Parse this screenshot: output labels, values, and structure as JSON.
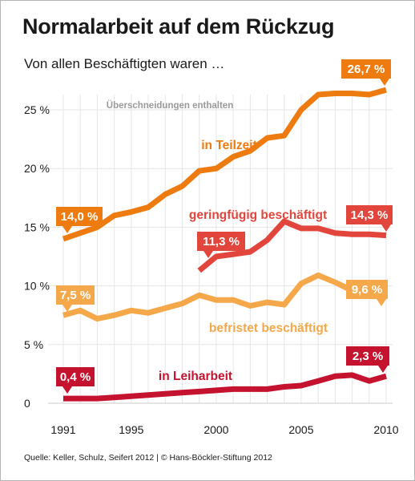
{
  "title": "Normalarbeit auf dem Rückzug",
  "subtitle": "Von allen Beschäftigten waren …",
  "note": "Überschneidungen enthalten",
  "source": "Quelle: Keller, Schulz, Seifert 2012 | © Hans-Böckler-Stiftung 2012",
  "chart_data": {
    "type": "line",
    "x_ticks": [
      "1991",
      "1995",
      "2000",
      "2005",
      "2010"
    ],
    "y_ticks": [
      "0",
      "5 %",
      "10 %",
      "15 %",
      "20 %",
      "25 %"
    ],
    "ylim": [
      0,
      28
    ],
    "xlim": [
      1991,
      2010
    ],
    "grid": true,
    "series": [
      {
        "name": "in Teilzeit",
        "color": "#ee7b10",
        "x": [
          1991,
          1992,
          1993,
          1994,
          1995,
          1996,
          1997,
          1998,
          1999,
          2000,
          2001,
          2002,
          2003,
          2004,
          2005,
          2006,
          2007,
          2008,
          2009,
          2010
        ],
        "values": [
          14.0,
          14.5,
          15.0,
          16.0,
          16.3,
          16.7,
          17.8,
          18.5,
          19.8,
          20.0,
          21.0,
          21.5,
          22.6,
          22.8,
          25.0,
          26.3,
          26.4,
          26.4,
          26.3,
          26.7
        ],
        "start_label": "14,0 %",
        "end_label": "26,7 %"
      },
      {
        "name": "geringfügig beschäftigt",
        "color": "#e2453b",
        "x": [
          1999,
          2000,
          2001,
          2002,
          2003,
          2004,
          2005,
          2006,
          2007,
          2008,
          2009,
          2010
        ],
        "values": [
          11.3,
          12.5,
          12.7,
          12.9,
          13.9,
          15.5,
          14.9,
          14.9,
          14.5,
          14.4,
          14.4,
          14.3
        ],
        "start_label": "11,3 %",
        "end_label": "14,3 %"
      },
      {
        "name": "befristet beschäftigt",
        "color": "#f5a84a",
        "x": [
          1991,
          1992,
          1993,
          1994,
          1995,
          1996,
          1997,
          1998,
          1999,
          2000,
          2001,
          2002,
          2003,
          2004,
          2005,
          2006,
          2007,
          2008,
          2009,
          2010
        ],
        "values": [
          7.5,
          7.9,
          7.2,
          7.5,
          7.9,
          7.7,
          8.1,
          8.5,
          9.2,
          8.8,
          8.8,
          8.3,
          8.6,
          8.4,
          10.2,
          10.9,
          10.3,
          9.6,
          9.3,
          9.6
        ],
        "start_label": "7,5 %",
        "end_label": "9,6 %"
      },
      {
        "name": "in Leiharbeit",
        "color": "#c4122f",
        "x": [
          1991,
          1992,
          1993,
          1994,
          1995,
          1996,
          1997,
          1998,
          1999,
          2000,
          2001,
          2002,
          2003,
          2004,
          2005,
          2006,
          2007,
          2008,
          2009,
          2010
        ],
        "values": [
          0.4,
          0.4,
          0.4,
          0.5,
          0.6,
          0.7,
          0.8,
          0.9,
          1.0,
          1.1,
          1.2,
          1.2,
          1.2,
          1.4,
          1.5,
          1.9,
          2.3,
          2.4,
          1.9,
          2.3
        ],
        "start_label": "0,4 %",
        "end_label": "2,3 %"
      }
    ]
  }
}
